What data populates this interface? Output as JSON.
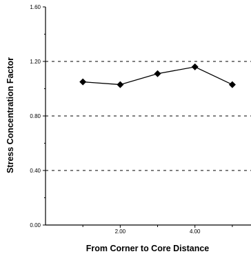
{
  "chart_data": {
    "type": "line",
    "title": "",
    "xlabel": "From Corner to Core Distance",
    "ylabel": "Stress Concentration Factor",
    "xlim": [
      0,
      5.5
    ],
    "ylim": [
      0,
      1.6
    ],
    "x_ticks": [
      {
        "value": 2,
        "label": "2.00"
      },
      {
        "value": 4,
        "label": "4.00"
      }
    ],
    "y_ticks": [
      {
        "value": 0,
        "label": "0.00"
      },
      {
        "value": 0.4,
        "label": "0.40"
      },
      {
        "value": 0.8,
        "label": "0.80"
      },
      {
        "value": 1.2,
        "label": "1.20"
      },
      {
        "value": 1.6,
        "label": "1.60"
      }
    ],
    "x_minor_ticks": [
      1,
      3,
      5
    ],
    "y_minor_ticks": [
      0.2,
      0.6,
      1.0,
      1.4
    ],
    "gridlines_y": [
      0.4,
      0.8,
      1.2
    ],
    "grid_style": "dashed",
    "series": [
      {
        "x": [
          1,
          2,
          3,
          4,
          5
        ],
        "values": [
          1.05,
          1.03,
          1.11,
          1.16,
          1.03
        ],
        "marker": "diamond",
        "color": "#000000"
      }
    ]
  }
}
